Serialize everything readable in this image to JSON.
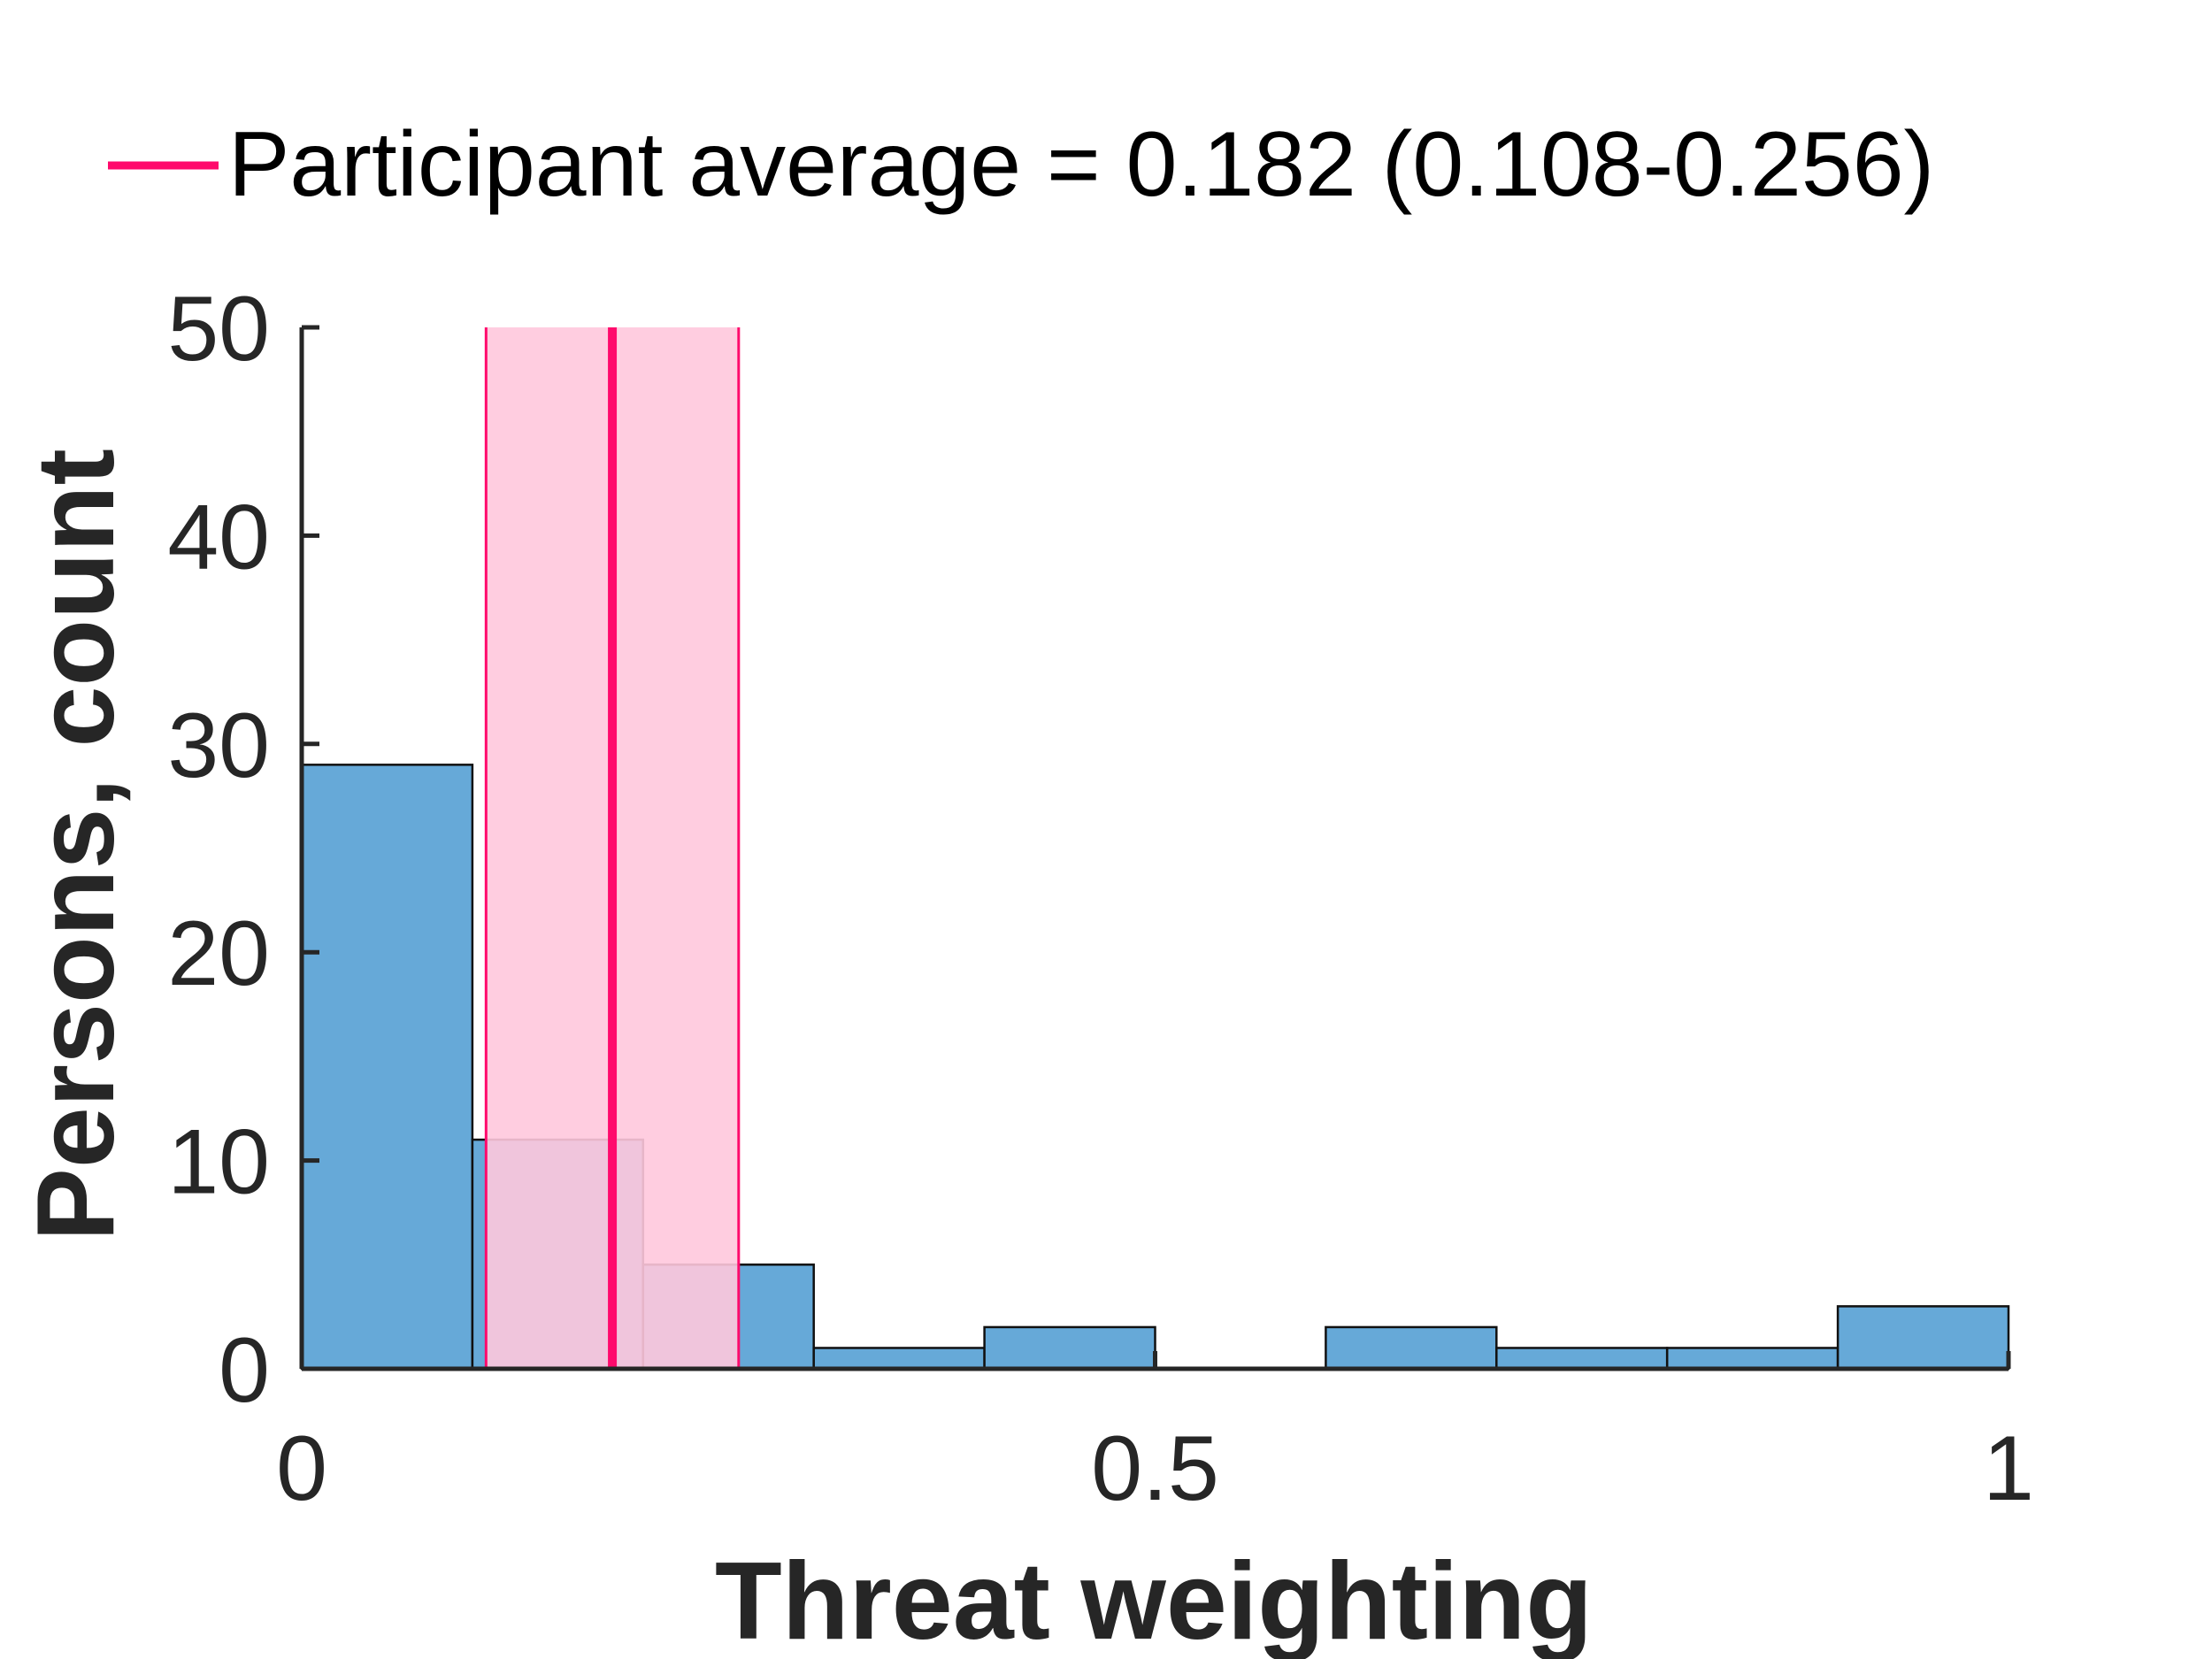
{
  "chart_data": {
    "type": "bar",
    "subtype": "histogram",
    "title": "",
    "xlabel": "Threat weighting",
    "ylabel": "Persons, count",
    "xlim": [
      0,
      1
    ],
    "ylim": [
      0,
      50
    ],
    "xticks": [
      0,
      0.5,
      1
    ],
    "xtick_labels": [
      "0",
      "0.5",
      "1"
    ],
    "yticks": [
      0,
      10,
      20,
      30,
      40,
      50
    ],
    "ytick_labels": [
      "0",
      "10",
      "20",
      "30",
      "40",
      "50"
    ],
    "grid": false,
    "legend_position": "top-center",
    "bins": [
      {
        "start": 0.0,
        "end": 0.1,
        "count": 29
      },
      {
        "start": 0.1,
        "end": 0.2,
        "count": 11
      },
      {
        "start": 0.2,
        "end": 0.3,
        "count": 5
      },
      {
        "start": 0.3,
        "end": 0.4,
        "count": 1
      },
      {
        "start": 0.4,
        "end": 0.5,
        "count": 2
      },
      {
        "start": 0.5,
        "end": 0.6,
        "count": 0
      },
      {
        "start": 0.6,
        "end": 0.7,
        "count": 2
      },
      {
        "start": 0.7,
        "end": 0.8,
        "count": 1
      },
      {
        "start": 0.8,
        "end": 0.9,
        "count": 1
      },
      {
        "start": 0.9,
        "end": 1.0,
        "count": 3
      }
    ],
    "average": {
      "label": "Participant average = 0.182 (0.108-0.256)",
      "value": 0.182,
      "ci_low": 0.108,
      "ci_high": 0.256
    },
    "colors": {
      "bar_fill": "#66a9d8",
      "bar_edge": "#111111",
      "average_line": "#ff0a6c",
      "ci_band": "#ffc8dd",
      "ci_edge": "#ff0a6c",
      "axis": "#262626",
      "text": "#262626",
      "legend_text": "#000000"
    }
  }
}
